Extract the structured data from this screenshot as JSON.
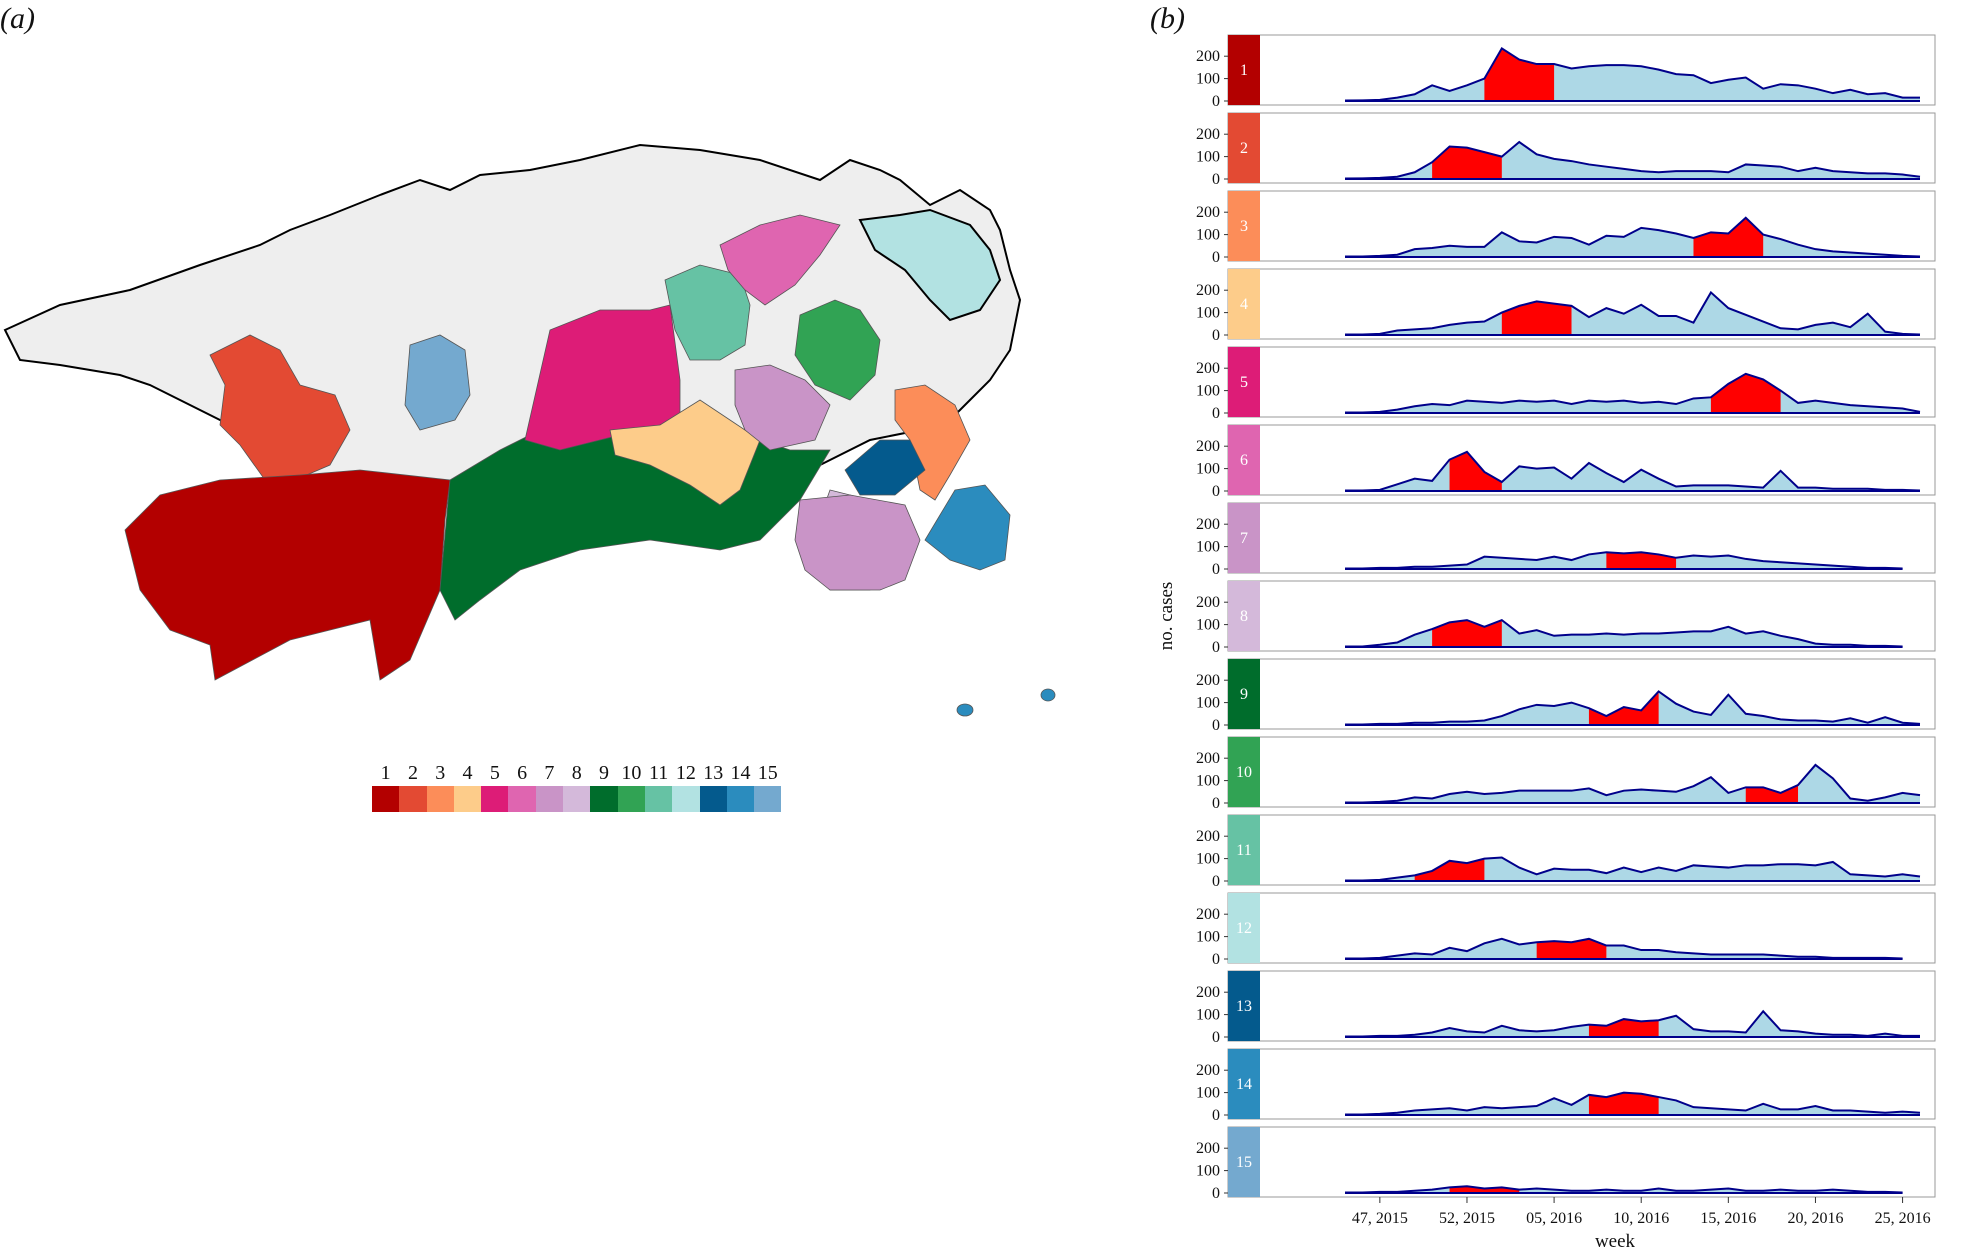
{
  "panel_labels": {
    "a": "(a)",
    "b": "(b)"
  },
  "legend": {
    "labels": [
      "1",
      "2",
      "3",
      "4",
      "5",
      "6",
      "7",
      "8",
      "9",
      "10",
      "11",
      "12",
      "13",
      "14",
      "15"
    ]
  },
  "colors": {
    "1": "#b30000",
    "2": "#e34a33",
    "3": "#fc8d59",
    "4": "#fdcc8a",
    "5": "#dd1c77",
    "6": "#df65b0",
    "7": "#c994c7",
    "8": "#d4b9da",
    "9": "#006d2c",
    "10": "#31a354",
    "11": "#66c2a4",
    "12": "#b2e2e2",
    "13": "#045a8d",
    "14": "#2b8cbe",
    "15": "#74a9cf",
    "area_fill": "#add8e6",
    "line": "#00008b",
    "peak_fill": "#ff0000",
    "background_region": "#eeeeee"
  },
  "chart_data": {
    "type": "area",
    "xlabel": "week",
    "ylabel": "no. cases",
    "ylim": [
      0,
      250
    ],
    "yticks": [
      0,
      100,
      200
    ],
    "x_ticks": [
      {
        "label": "47, 2015",
        "index": 2
      },
      {
        "label": "52, 2015",
        "index": 7
      },
      {
        "label": "05, 2016",
        "index": 12
      },
      {
        "label": "10, 2016",
        "index": 17
      },
      {
        "label": "15, 2016",
        "index": 22
      },
      {
        "label": "20, 2016",
        "index": 27
      },
      {
        "label": "25, 2016",
        "index": 32
      }
    ],
    "x_start_label": "45, 2015",
    "n_weeks": 34,
    "series": [
      {
        "name": "1",
        "values": [
          2,
          3,
          5,
          15,
          30,
          70,
          45,
          70,
          100,
          235,
          185,
          165,
          165,
          145,
          155,
          160,
          160,
          155,
          140,
          120,
          115,
          80,
          95,
          105,
          55,
          75,
          70,
          55,
          35,
          50,
          30,
          35,
          15,
          15,
          10,
          5,
          2
        ],
        "peak": [
          8,
          12
        ]
      },
      {
        "name": "2",
        "values": [
          2,
          3,
          5,
          10,
          30,
          75,
          145,
          140,
          120,
          100,
          165,
          110,
          90,
          80,
          65,
          55,
          45,
          35,
          30,
          35,
          35,
          35,
          30,
          65,
          60,
          55,
          35,
          50,
          35,
          30,
          25,
          25,
          20,
          10,
          5,
          15
        ],
        "peak": [
          5,
          9
        ]
      },
      {
        "name": "3",
        "values": [
          2,
          2,
          5,
          10,
          35,
          40,
          50,
          45,
          45,
          110,
          70,
          65,
          90,
          85,
          55,
          95,
          90,
          130,
          120,
          105,
          85,
          110,
          105,
          175,
          100,
          80,
          55,
          35,
          25,
          20,
          15,
          10,
          5,
          2
        ],
        "peak": [
          20,
          24
        ]
      },
      {
        "name": "4",
        "values": [
          2,
          2,
          5,
          20,
          25,
          30,
          45,
          55,
          60,
          100,
          130,
          150,
          140,
          130,
          80,
          120,
          95,
          135,
          85,
          85,
          55,
          190,
          120,
          90,
          60,
          30,
          25,
          45,
          55,
          35,
          95,
          15,
          5,
          2
        ],
        "peak": [
          9,
          13
        ]
      },
      {
        "name": "5",
        "values": [
          2,
          2,
          5,
          15,
          30,
          40,
          35,
          55,
          50,
          45,
          55,
          50,
          55,
          40,
          55,
          50,
          55,
          45,
          50,
          40,
          65,
          70,
          130,
          175,
          150,
          100,
          45,
          55,
          45,
          35,
          30,
          25,
          20,
          5,
          5,
          10
        ],
        "peak": [
          21,
          25
        ]
      },
      {
        "name": "6",
        "values": [
          2,
          2,
          5,
          30,
          55,
          45,
          140,
          175,
          85,
          40,
          110,
          100,
          105,
          55,
          125,
          80,
          40,
          95,
          55,
          20,
          25,
          25,
          25,
          20,
          15,
          90,
          15,
          15,
          10,
          10,
          10,
          5,
          5,
          2
        ],
        "peak": [
          6,
          9
        ]
      },
      {
        "name": "7",
        "values": [
          2,
          2,
          5,
          5,
          10,
          10,
          15,
          20,
          55,
          50,
          45,
          40,
          55,
          40,
          65,
          75,
          70,
          75,
          65,
          50,
          60,
          55,
          60,
          45,
          35,
          30,
          25,
          20,
          15,
          10,
          5,
          5,
          2
        ],
        "peak": [
          15,
          19
        ]
      },
      {
        "name": "8",
        "values": [
          2,
          2,
          10,
          20,
          55,
          80,
          110,
          120,
          90,
          120,
          60,
          75,
          50,
          55,
          55,
          60,
          55,
          60,
          60,
          65,
          70,
          70,
          90,
          60,
          70,
          50,
          35,
          15,
          10,
          10,
          5,
          5,
          2
        ],
        "peak": [
          5,
          9
        ]
      },
      {
        "name": "9",
        "values": [
          2,
          2,
          5,
          5,
          10,
          10,
          15,
          15,
          20,
          40,
          70,
          90,
          85,
          100,
          75,
          40,
          80,
          65,
          150,
          95,
          60,
          45,
          135,
          50,
          40,
          25,
          20,
          20,
          15,
          30,
          10,
          35,
          10,
          5,
          2
        ],
        "peak": [
          14,
          18
        ]
      },
      {
        "name": "10",
        "values": [
          2,
          2,
          5,
          10,
          25,
          20,
          40,
          50,
          40,
          45,
          55,
          55,
          55,
          55,
          65,
          35,
          55,
          60,
          55,
          50,
          75,
          115,
          45,
          70,
          70,
          45,
          80,
          170,
          110,
          20,
          10,
          25,
          45,
          35,
          10,
          15
        ],
        "peak": [
          23,
          26
        ]
      },
      {
        "name": "11",
        "values": [
          2,
          2,
          5,
          15,
          25,
          45,
          90,
          80,
          100,
          105,
          60,
          30,
          55,
          50,
          50,
          35,
          60,
          40,
          60,
          45,
          70,
          65,
          60,
          70,
          70,
          75,
          75,
          70,
          85,
          30,
          25,
          20,
          30,
          20,
          15,
          10,
          5,
          2
        ],
        "peak": [
          4,
          8
        ]
      },
      {
        "name": "12",
        "values": [
          2,
          2,
          5,
          15,
          25,
          20,
          50,
          35,
          70,
          90,
          65,
          75,
          80,
          75,
          90,
          60,
          60,
          40,
          40,
          30,
          25,
          20,
          20,
          20,
          20,
          15,
          10,
          10,
          5,
          5,
          5,
          5,
          2
        ],
        "peak": [
          11,
          15
        ]
      },
      {
        "name": "13",
        "values": [
          2,
          2,
          5,
          5,
          10,
          20,
          40,
          25,
          20,
          50,
          30,
          25,
          30,
          45,
          55,
          50,
          80,
          70,
          75,
          95,
          35,
          25,
          25,
          20,
          115,
          30,
          25,
          15,
          10,
          10,
          5,
          15,
          5,
          5,
          2
        ],
        "peak": [
          14,
          18
        ]
      },
      {
        "name": "14",
        "values": [
          2,
          2,
          5,
          10,
          20,
          25,
          30,
          20,
          35,
          30,
          35,
          40,
          75,
          45,
          90,
          80,
          100,
          95,
          80,
          65,
          35,
          30,
          25,
          20,
          50,
          25,
          25,
          40,
          20,
          20,
          15,
          10,
          15,
          10,
          5
        ],
        "peak": [
          14,
          18
        ]
      },
      {
        "name": "15",
        "values": [
          2,
          2,
          5,
          5,
          10,
          15,
          25,
          30,
          20,
          25,
          15,
          20,
          15,
          10,
          10,
          15,
          10,
          10,
          20,
          10,
          10,
          15,
          20,
          10,
          10,
          15,
          10,
          10,
          15,
          10,
          5,
          5,
          2
        ],
        "peak": [
          6,
          10
        ]
      }
    ]
  }
}
